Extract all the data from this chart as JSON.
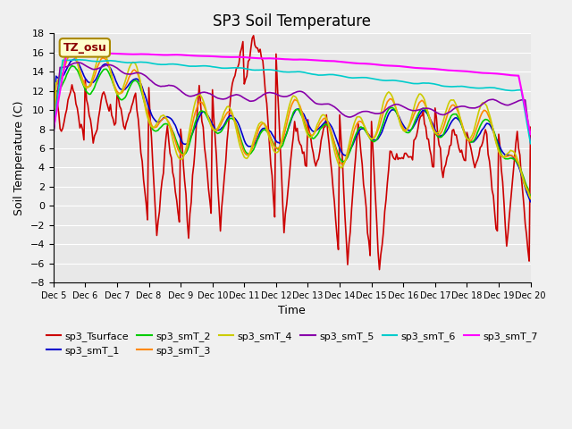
{
  "title": "SP3 Soil Temperature",
  "ylabel": "Soil Temperature (C)",
  "xlabel": "Time",
  "annotation": "TZ_osu",
  "ylim": [
    -8,
    18
  ],
  "xlim": [
    0,
    360
  ],
  "x_tick_labels": [
    "Dec 5",
    "Dec 6",
    "Dec 7",
    "Dec 8",
    "Dec 9",
    "Dec 10",
    "Dec 11",
    "Dec 12",
    "Dec 13",
    "Dec 14",
    "Dec 15",
    "Dec 16",
    "Dec 17",
    "Dec 18",
    "Dec 19",
    "Dec 20"
  ],
  "x_tick_positions": [
    0,
    24,
    48,
    72,
    96,
    120,
    144,
    168,
    192,
    216,
    240,
    264,
    288,
    312,
    336,
    360
  ],
  "yticks": [
    -8,
    -6,
    -4,
    -2,
    0,
    2,
    4,
    6,
    8,
    10,
    12,
    14,
    16,
    18
  ],
  "series_colors": {
    "sp3_Tsurface": "#cc0000",
    "sp3_smT_1": "#0000cc",
    "sp3_smT_2": "#00cc00",
    "sp3_smT_3": "#ff8800",
    "sp3_smT_4": "#cccc00",
    "sp3_smT_5": "#8800aa",
    "sp3_smT_6": "#00cccc",
    "sp3_smT_7": "#ff00ff"
  },
  "background_color": "#f0f0f0",
  "plot_bg_color": "#e8e8e8",
  "title_fontsize": 12,
  "label_fontsize": 9,
  "tick_fontsize": 8,
  "linewidth": 1.2
}
